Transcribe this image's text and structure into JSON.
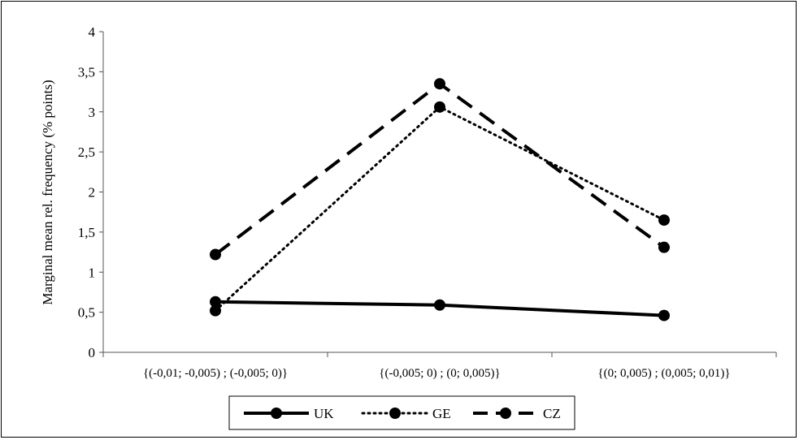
{
  "chart_data": {
    "type": "line",
    "title": "",
    "xlabel": "",
    "ylabel": "Marginal mean rel. frequency (% points)",
    "ylim": [
      0,
      4
    ],
    "yticks": [
      "0",
      "0,5",
      "1",
      "1,5",
      "2",
      "2,5",
      "3",
      "3,5",
      "4"
    ],
    "ytick_values": [
      0,
      0.5,
      1,
      1.5,
      2,
      2.5,
      3,
      3.5,
      4
    ],
    "categories": [
      "{(-0,01; -0,005) ; (-0,005; 0)}",
      "{(-0,005; 0) ; (0; 0,005)}",
      "{(0; 0,005) ; (0,005; 0,01)}"
    ],
    "grid": false,
    "legend_position": "bottom",
    "series": [
      {
        "name": "UK",
        "values": [
          0.63,
          0.59,
          0.46
        ],
        "dash": "solid",
        "color": "#000000"
      },
      {
        "name": "GE",
        "values": [
          0.52,
          3.06,
          1.65
        ],
        "dash": "dotted",
        "color": "#000000"
      },
      {
        "name": "CZ",
        "values": [
          1.22,
          3.35,
          1.31
        ],
        "dash": "dashed",
        "color": "#000000"
      }
    ]
  }
}
